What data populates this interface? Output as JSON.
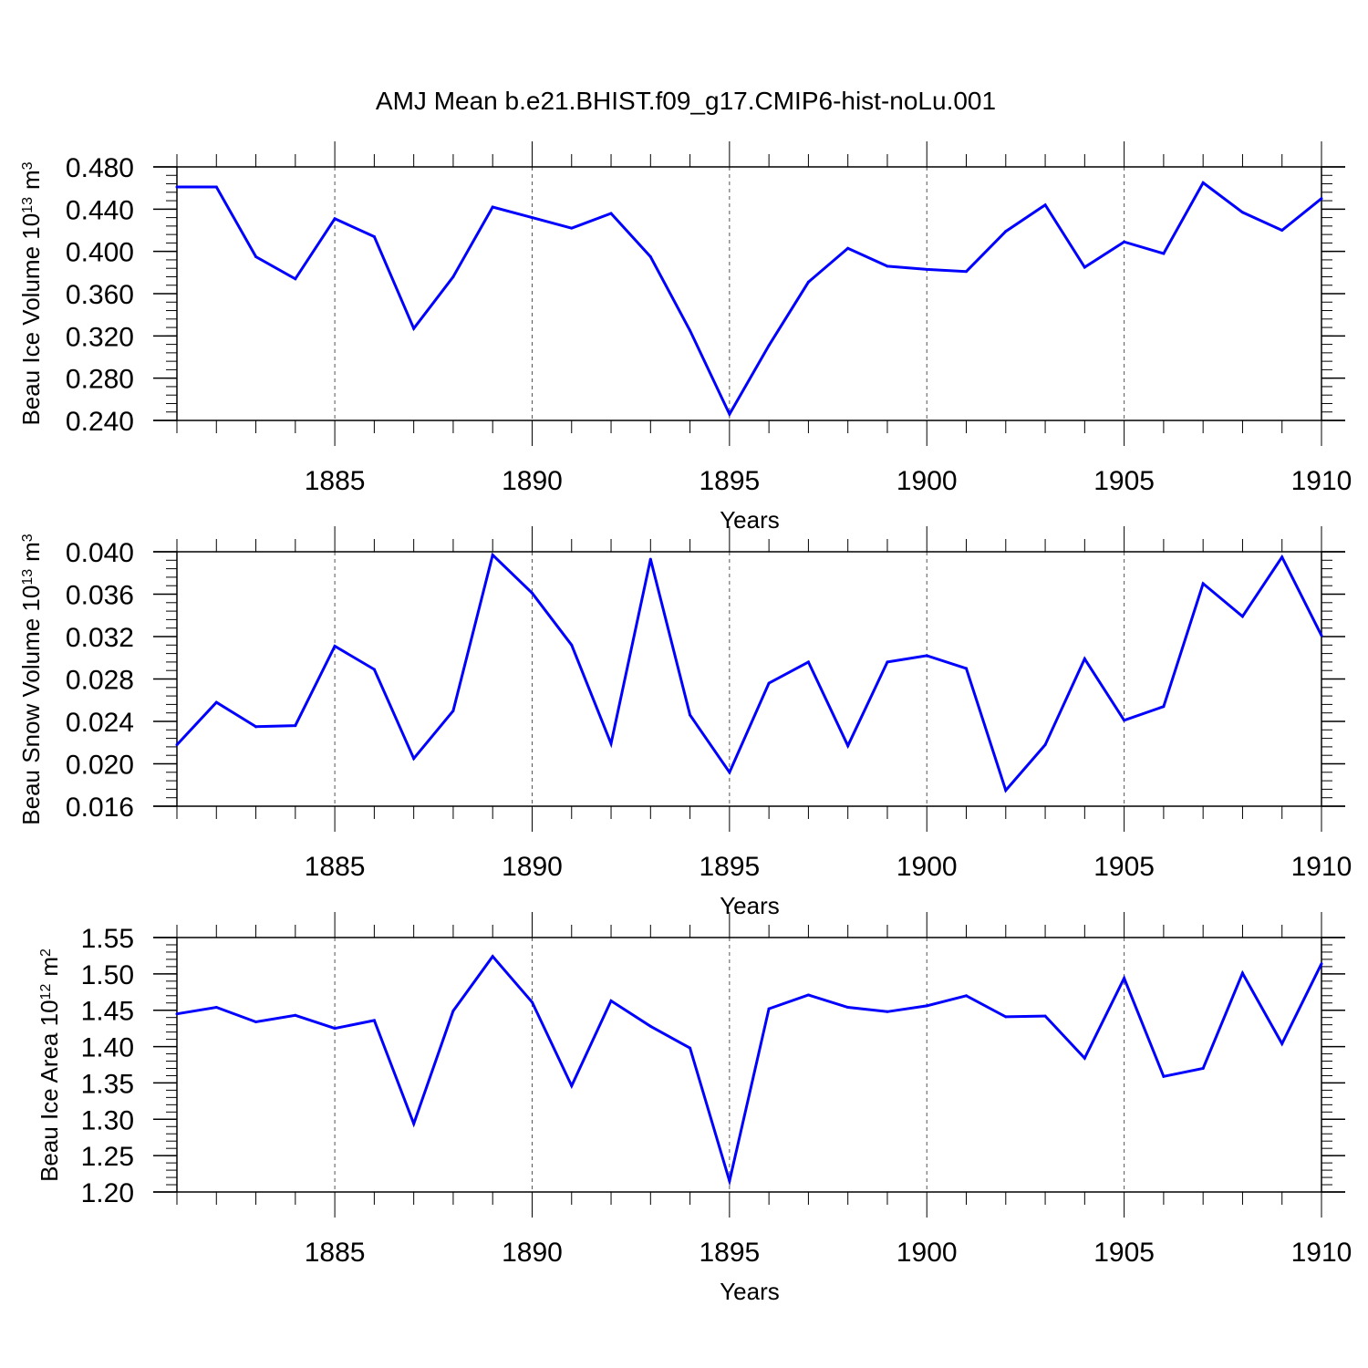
{
  "title": "AMJ Mean b.e21.BHIST.f09_g17.CMIP6-hist-noLu.001",
  "colors": {
    "line": "#0000ff",
    "axis": "#000000",
    "grid": "#555555",
    "background": "#ffffff"
  },
  "chart_data": [
    {
      "type": "line",
      "ylabel": "Beau Ice Volume 10",
      "ylabel_exp": "13",
      "ylabel_unit": "m",
      "ylabel_unit_exp": "3",
      "xlabel": "Years",
      "xlim": [
        1881,
        1910
      ],
      "ylim": [
        0.24,
        0.48
      ],
      "yticks": [
        0.24,
        0.28,
        0.32,
        0.36,
        0.4,
        0.44,
        0.48
      ],
      "ytick_labels": [
        "0.240",
        "0.280",
        "0.320",
        "0.360",
        "0.400",
        "0.440",
        "0.480"
      ],
      "yminor_step": 0.008,
      "xticks": [
        1885,
        1890,
        1895,
        1900,
        1905,
        1910
      ],
      "xtick_labels": [
        "1885",
        "1890",
        "1895",
        "1900",
        "1905",
        "1910"
      ],
      "grid": "vertical-dashed",
      "x": [
        1881,
        1882,
        1883,
        1884,
        1885,
        1886,
        1887,
        1888,
        1889,
        1890,
        1891,
        1892,
        1893,
        1894,
        1895,
        1896,
        1897,
        1898,
        1899,
        1900,
        1901,
        1902,
        1903,
        1904,
        1905,
        1906,
        1907,
        1908,
        1909,
        1910
      ],
      "values": [
        0.461,
        0.461,
        0.395,
        0.374,
        0.431,
        0.414,
        0.327,
        0.376,
        0.442,
        0.432,
        0.422,
        0.436,
        0.395,
        0.325,
        0.246,
        0.311,
        0.371,
        0.403,
        0.386,
        0.383,
        0.381,
        0.419,
        0.444,
        0.385,
        0.409,
        0.398,
        0.465,
        0.437,
        0.42,
        0.45
      ]
    },
    {
      "type": "line",
      "ylabel": "Beau Snow Volume 10",
      "ylabel_exp": "13",
      "ylabel_unit": "m",
      "ylabel_unit_exp": "3",
      "xlabel": "Years",
      "xlim": [
        1881,
        1910
      ],
      "ylim": [
        0.016,
        0.04
      ],
      "yticks": [
        0.016,
        0.02,
        0.024,
        0.028,
        0.032,
        0.036,
        0.04
      ],
      "ytick_labels": [
        "0.016",
        "0.020",
        "0.024",
        "0.028",
        "0.032",
        "0.036",
        "0.040"
      ],
      "yminor_step": 0.0008,
      "xticks": [
        1885,
        1890,
        1895,
        1900,
        1905,
        1910
      ],
      "xtick_labels": [
        "1885",
        "1890",
        "1895",
        "1900",
        "1905",
        "1910"
      ],
      "grid": "vertical-dashed",
      "x": [
        1881,
        1882,
        1883,
        1884,
        1885,
        1886,
        1887,
        1888,
        1889,
        1890,
        1891,
        1892,
        1893,
        1894,
        1895,
        1896,
        1897,
        1898,
        1899,
        1900,
        1901,
        1902,
        1903,
        1904,
        1905,
        1906,
        1907,
        1908,
        1909,
        1910
      ],
      "values": [
        0.0218,
        0.0258,
        0.0235,
        0.0236,
        0.0311,
        0.0289,
        0.0205,
        0.025,
        0.0397,
        0.0361,
        0.0312,
        0.0219,
        0.0393,
        0.0246,
        0.0192,
        0.0276,
        0.0296,
        0.0217,
        0.0296,
        0.0302,
        0.029,
        0.0175,
        0.0218,
        0.0299,
        0.0241,
        0.0254,
        0.037,
        0.0339,
        0.0395,
        0.0321
      ]
    },
    {
      "type": "line",
      "ylabel": "Beau Ice Area 10",
      "ylabel_exp": "12",
      "ylabel_unit": "m",
      "ylabel_unit_exp": "2",
      "xlabel": "Years",
      "xlim": [
        1881,
        1910
      ],
      "ylim": [
        1.2,
        1.55
      ],
      "yticks": [
        1.2,
        1.25,
        1.3,
        1.35,
        1.4,
        1.45,
        1.5,
        1.55
      ],
      "ytick_labels": [
        "1.20",
        "1.25",
        "1.30",
        "1.35",
        "1.40",
        "1.45",
        "1.50",
        "1.55"
      ],
      "yminor_step": 0.01,
      "xticks": [
        1885,
        1890,
        1895,
        1900,
        1905,
        1910
      ],
      "xtick_labels": [
        "1885",
        "1890",
        "1895",
        "1900",
        "1905",
        "1910"
      ],
      "grid": "vertical-dashed",
      "x": [
        1881,
        1882,
        1883,
        1884,
        1885,
        1886,
        1887,
        1888,
        1889,
        1890,
        1891,
        1892,
        1893,
        1894,
        1895,
        1896,
        1897,
        1898,
        1899,
        1900,
        1901,
        1902,
        1903,
        1904,
        1905,
        1906,
        1907,
        1908,
        1909,
        1910
      ],
      "values": [
        1.445,
        1.454,
        1.434,
        1.443,
        1.425,
        1.436,
        1.294,
        1.449,
        1.524,
        1.461,
        1.346,
        1.463,
        1.428,
        1.398,
        1.215,
        1.452,
        1.471,
        1.454,
        1.448,
        1.456,
        1.47,
        1.441,
        1.442,
        1.384,
        1.494,
        1.359,
        1.37,
        1.501,
        1.404,
        1.514
      ]
    }
  ]
}
